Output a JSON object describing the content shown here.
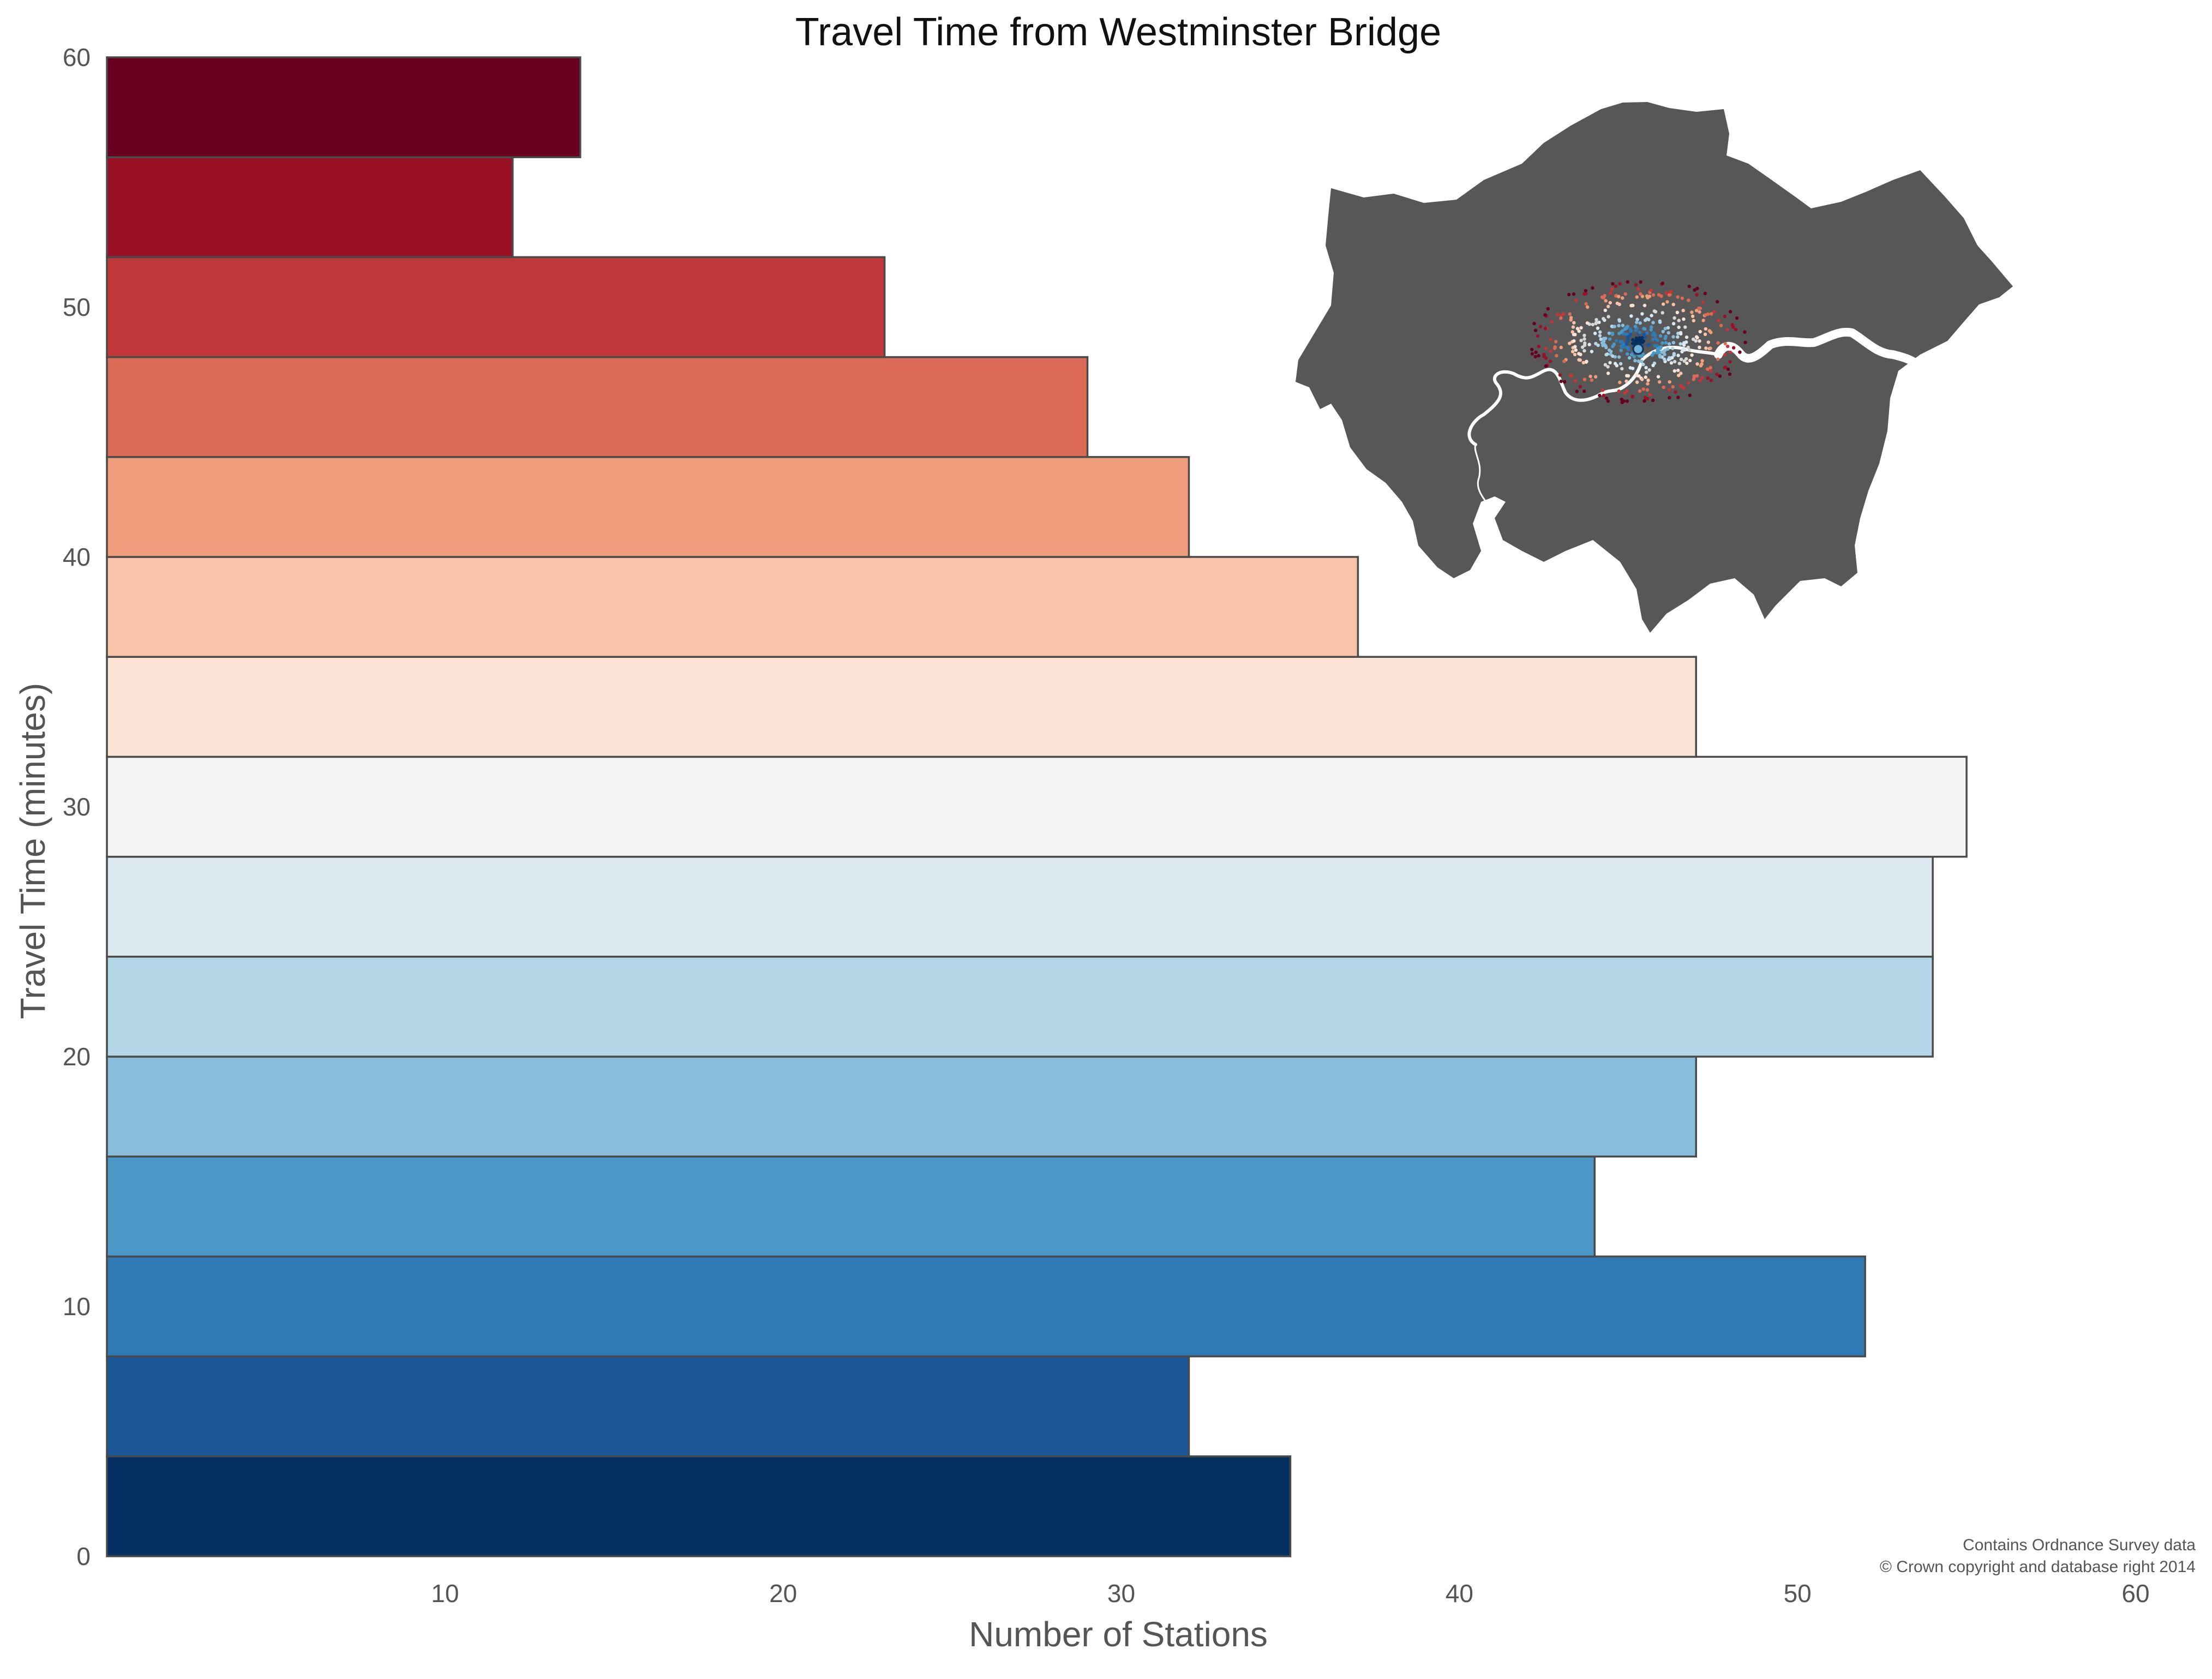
{
  "chart_data": {
    "type": "bar",
    "orientation": "horizontal",
    "title": "Travel Time from Westminster Bridge",
    "xlabel": "Number of Stations",
    "ylabel": "Travel Time (minutes)",
    "xlim": [
      0,
      60
    ],
    "ylim": [
      0,
      60
    ],
    "xticks": [
      10,
      20,
      30,
      40,
      50,
      60
    ],
    "yticks": [
      0,
      10,
      20,
      30,
      40,
      50,
      60
    ],
    "grid": false,
    "bins": [
      {
        "from": 0.0,
        "to": 4.0,
        "value": 35,
        "color": "#053061"
      },
      {
        "from": 4.0,
        "to": 8.0,
        "value": 32,
        "color": "#1b5796"
      },
      {
        "from": 8.0,
        "to": 12.0,
        "value": 52,
        "color": "#2f79b5"
      },
      {
        "from": 12.0,
        "to": 16.0,
        "value": 44,
        "color": "#4b98c7"
      },
      {
        "from": 16.0,
        "to": 20.0,
        "value": 47,
        "color": "#88bedc"
      },
      {
        "from": 20.0,
        "to": 24.0,
        "value": 54,
        "color": "#b6d7e8"
      },
      {
        "from": 24.0,
        "to": 28.0,
        "value": 54,
        "color": "#dce9f1"
      },
      {
        "from": 28.0,
        "to": 32.0,
        "value": 55,
        "color": "#f5f5f5"
      },
      {
        "from": 32.0,
        "to": 36.0,
        "value": 47,
        "color": "#fbe3d5"
      },
      {
        "from": 36.0,
        "to": 40.0,
        "value": 37,
        "color": "#f8c3a8"
      },
      {
        "from": 40.0,
        "to": 44.0,
        "value": 32,
        "color": "#ef9d7b"
      },
      {
        "from": 44.0,
        "to": 48.0,
        "value": 29,
        "color": "#db6b55"
      },
      {
        "from": 48.0,
        "to": 52.0,
        "value": 23,
        "color": "#c0383a"
      },
      {
        "from": 52.0,
        "to": 56.0,
        "value": 12,
        "color": "#9a1127"
      },
      {
        "from": 56.0,
        "to": 60.0,
        "value": 14,
        "color": "#67001f"
      }
    ],
    "annotations": [
      "Contains Ordnance Survey data",
      "© Crown copyright and database right 2014"
    ],
    "inset": {
      "type": "map",
      "fill": "#575757",
      "river_color": "#ffffff"
    }
  }
}
